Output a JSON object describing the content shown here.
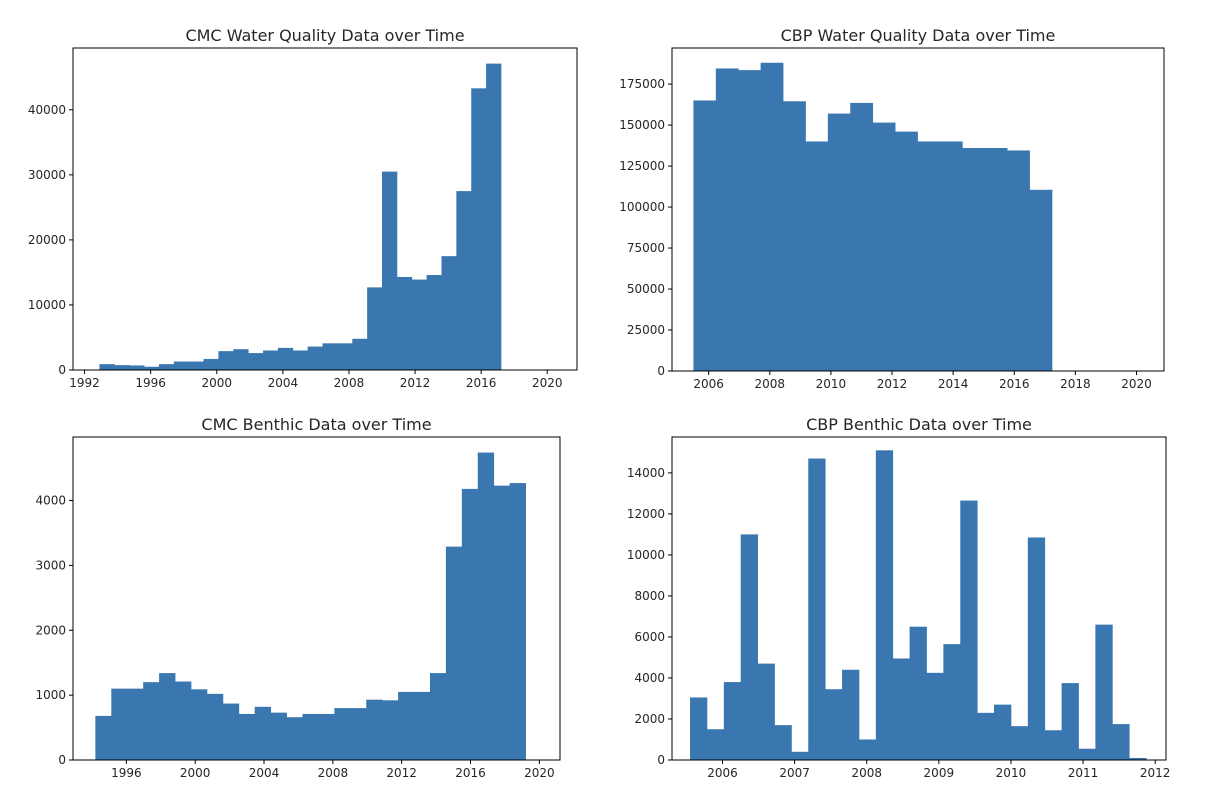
{
  "colors": {
    "bar": "#3a76af",
    "axis": "#000000",
    "text": "#262626"
  },
  "chart_data": [
    {
      "type": "bar",
      "title": "CMC Water Quality Data over Time",
      "xlabel": "",
      "ylabel": "",
      "xlim": [
        1991.3,
        2021.8
      ],
      "ylim": [
        0,
        49500
      ],
      "xticks": [
        1992,
        1996,
        2000,
        2004,
        2008,
        2012,
        2016,
        2020
      ],
      "xtick_labels": [
        "1992",
        "1996",
        "2000",
        "2004",
        "2008",
        "2012",
        "2016",
        "2020"
      ],
      "yticks": [
        0,
        10000,
        20000,
        30000,
        40000
      ],
      "ytick_labels": [
        "0",
        "10000",
        "20000",
        "30000",
        "40000"
      ],
      "bin_start": 1992.9,
      "bin_width": 0.9,
      "values": [
        900,
        750,
        700,
        500,
        900,
        1300,
        1300,
        1700,
        2900,
        3200,
        2600,
        3000,
        3400,
        3000,
        3600,
        4100,
        4100,
        4800,
        12700,
        30500,
        14300,
        13900,
        14600,
        17500,
        27500,
        43300,
        47100
      ]
    },
    {
      "type": "bar",
      "title": "CBP Water Quality Data over Time",
      "xlabel": "",
      "ylabel": "",
      "xlim": [
        2004.8,
        2020.9
      ],
      "ylim": [
        0,
        197000
      ],
      "xticks": [
        2006,
        2008,
        2010,
        2012,
        2014,
        2016,
        2018,
        2020
      ],
      "xtick_labels": [
        "2006",
        "2008",
        "2010",
        "2012",
        "2014",
        "2016",
        "2018",
        "2020"
      ],
      "yticks": [
        0,
        25000,
        50000,
        75000,
        100000,
        125000,
        150000,
        175000
      ],
      "ytick_labels": [
        "0",
        "25000",
        "50000",
        "75000",
        "100000",
        "125000",
        "150000",
        "175000"
      ],
      "bin_start": 2005.5,
      "bin_width": 0.7333,
      "values": [
        165000,
        184500,
        183500,
        188000,
        164500,
        140000,
        157000,
        163500,
        151500,
        146000,
        140000,
        140000,
        136000,
        136000,
        134500,
        110500
      ]
    },
    {
      "type": "bar",
      "title": "CMC Benthic Data over Time",
      "xlabel": "",
      "ylabel": "",
      "xlim": [
        1992.9,
        2021.2
      ],
      "ylim": [
        0,
        4980
      ],
      "xticks": [
        1996,
        2000,
        2004,
        2008,
        2012,
        2016,
        2020
      ],
      "xtick_labels": [
        "1996",
        "2000",
        "2004",
        "2008",
        "2012",
        "2016",
        "2020"
      ],
      "yticks": [
        0,
        1000,
        2000,
        3000,
        4000
      ],
      "ytick_labels": [
        "0",
        "1000",
        "2000",
        "3000",
        "4000"
      ],
      "bin_start": 1994.2,
      "bin_width": 0.9259,
      "values": [
        680,
        1100,
        1100,
        1200,
        1340,
        1210,
        1090,
        1020,
        870,
        710,
        820,
        730,
        660,
        710,
        710,
        800,
        800,
        930,
        920,
        1050,
        1050,
        1340,
        3290,
        4180,
        4740,
        4230,
        4270
      ]
    },
    {
      "type": "bar",
      "title": "CBP Benthic Data over Time",
      "xlabel": "",
      "ylabel": "",
      "xlim": [
        2005.3,
        2012.15
      ],
      "ylim": [
        0,
        15750
      ],
      "xticks": [
        2006,
        2007,
        2008,
        2009,
        2010,
        2011,
        2012
      ],
      "xtick_labels": [
        "2006",
        "2007",
        "2008",
        "2009",
        "2010",
        "2011",
        "2012"
      ],
      "yticks": [
        0,
        2000,
        4000,
        6000,
        8000,
        10000,
        12000,
        14000
      ],
      "ytick_labels": [
        "0",
        "2000",
        "4000",
        "6000",
        "8000",
        "10000",
        "12000",
        "14000"
      ],
      "bin_start": 2005.55,
      "bin_width": 0.2342,
      "values": [
        3050,
        1500,
        3800,
        11000,
        4700,
        1700,
        400,
        14700,
        3450,
        4400,
        1000,
        15100,
        4950,
        6500,
        4250,
        5650,
        12650,
        2300,
        2700,
        1650,
        10850,
        1450,
        3750,
        550,
        6600,
        1750,
        100
      ]
    }
  ]
}
